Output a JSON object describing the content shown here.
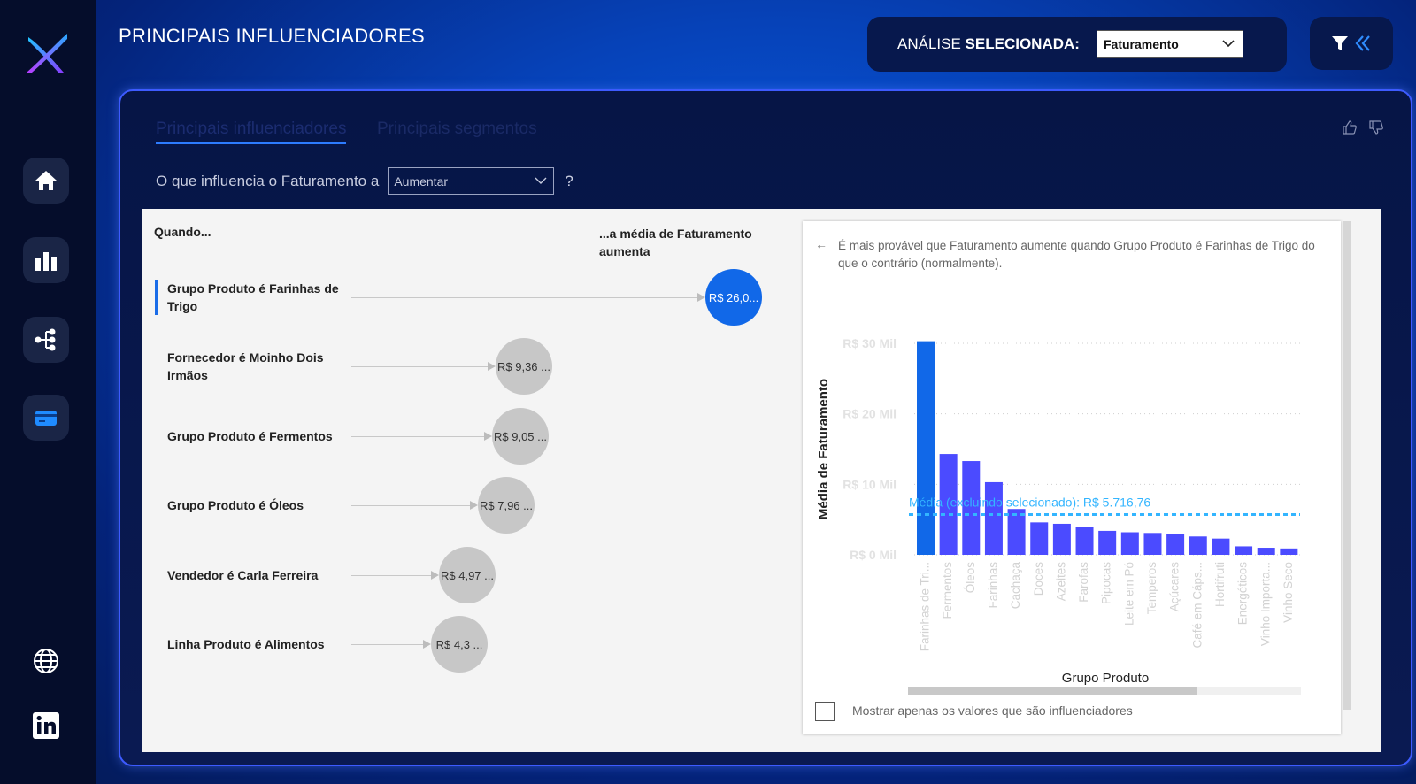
{
  "header": {
    "title": "PRINCIPAIS INFLUENCIADORES",
    "analysis_label_light": "ANÁLISE ",
    "analysis_label_bold": "SELECIONADA:",
    "analysis_value": "Faturamento"
  },
  "sidebar": {
    "items": [
      {
        "name": "home-icon"
      },
      {
        "name": "bar-chart-icon"
      },
      {
        "name": "decomposition-tree-icon"
      },
      {
        "name": "card-icon"
      },
      {
        "name": "globe-icon"
      },
      {
        "name": "linkedin-icon"
      }
    ]
  },
  "panel": {
    "tabs": [
      "Principais influenciadores",
      "Principais segmentos"
    ],
    "question_prefix": "O que influencia o Faturamento a",
    "question_select": "Aumentar",
    "question_suffix": "?"
  },
  "influencers": {
    "col_when": "Quando...",
    "col_avg_line1": "...a média de Faturamento",
    "col_avg_line2": "aumenta",
    "rows": [
      {
        "label": "Grupo Produto é Farinhas de Trigo",
        "value": "R$ 26,0...",
        "highlighted": true
      },
      {
        "label": "Fornecedor é Moinho Dois Irmãos",
        "value": "R$ 9,36 ...",
        "highlighted": false
      },
      {
        "label": "Grupo Produto é Fermentos",
        "value": "R$ 9,05 ...",
        "highlighted": false
      },
      {
        "label": "Grupo Produto é Óleos",
        "value": "R$ 7,96 ...",
        "highlighted": false
      },
      {
        "label": "Vendedor é Carla Ferreira",
        "value": "R$ 4,97 ...",
        "highlighted": false
      },
      {
        "label": "Linha Produto é Alimentos",
        "value": "R$ 4,3 ...",
        "highlighted": false
      }
    ]
  },
  "detail": {
    "description": "É mais provável que Faturamento aumente quando Grupo Produto é Farinhas de Trigo do que o contrário (normalmente).",
    "checkbox_label": "Mostrar apenas os valores que são influenciadores"
  },
  "chart_data": {
    "type": "bar",
    "xlabel": "Grupo Produto",
    "ylabel": "Média de Faturamento",
    "ylim": [
      0,
      30000
    ],
    "yticks": [
      {
        "value": 0,
        "label": "R$ 0 Mil"
      },
      {
        "value": 10000,
        "label": "R$ 10 Mil"
      },
      {
        "value": 20000,
        "label": "R$ 20 Mil"
      },
      {
        "value": 30000,
        "label": "R$ 30 Mil"
      }
    ],
    "categories": [
      "Farinhas de Tri...",
      "Fermentos",
      "Óleos",
      "Farinhas",
      "Cachaça",
      "Doces",
      "Azeites",
      "Farofas",
      "Pipocas",
      "Leite em Pó",
      "Temperos",
      "Açúcares",
      "Café em Cáps...",
      "Hortifruti",
      "Energéticos",
      "Vinho Importa...",
      "Vinho Seco"
    ],
    "values": [
      30300,
      14300,
      13300,
      10300,
      6500,
      4600,
      4400,
      3900,
      3400,
      3200,
      3100,
      2900,
      2600,
      2300,
      1200,
      1000,
      900
    ],
    "highlight_index": 0,
    "highlight_color": "#1168e8",
    "bar_color": "#4b4bff",
    "reference_line": {
      "value": 5716.76,
      "label": "Média (excluindo selecionado): R$ 5.716,76",
      "color": "#33b5ff"
    },
    "grid": true
  }
}
